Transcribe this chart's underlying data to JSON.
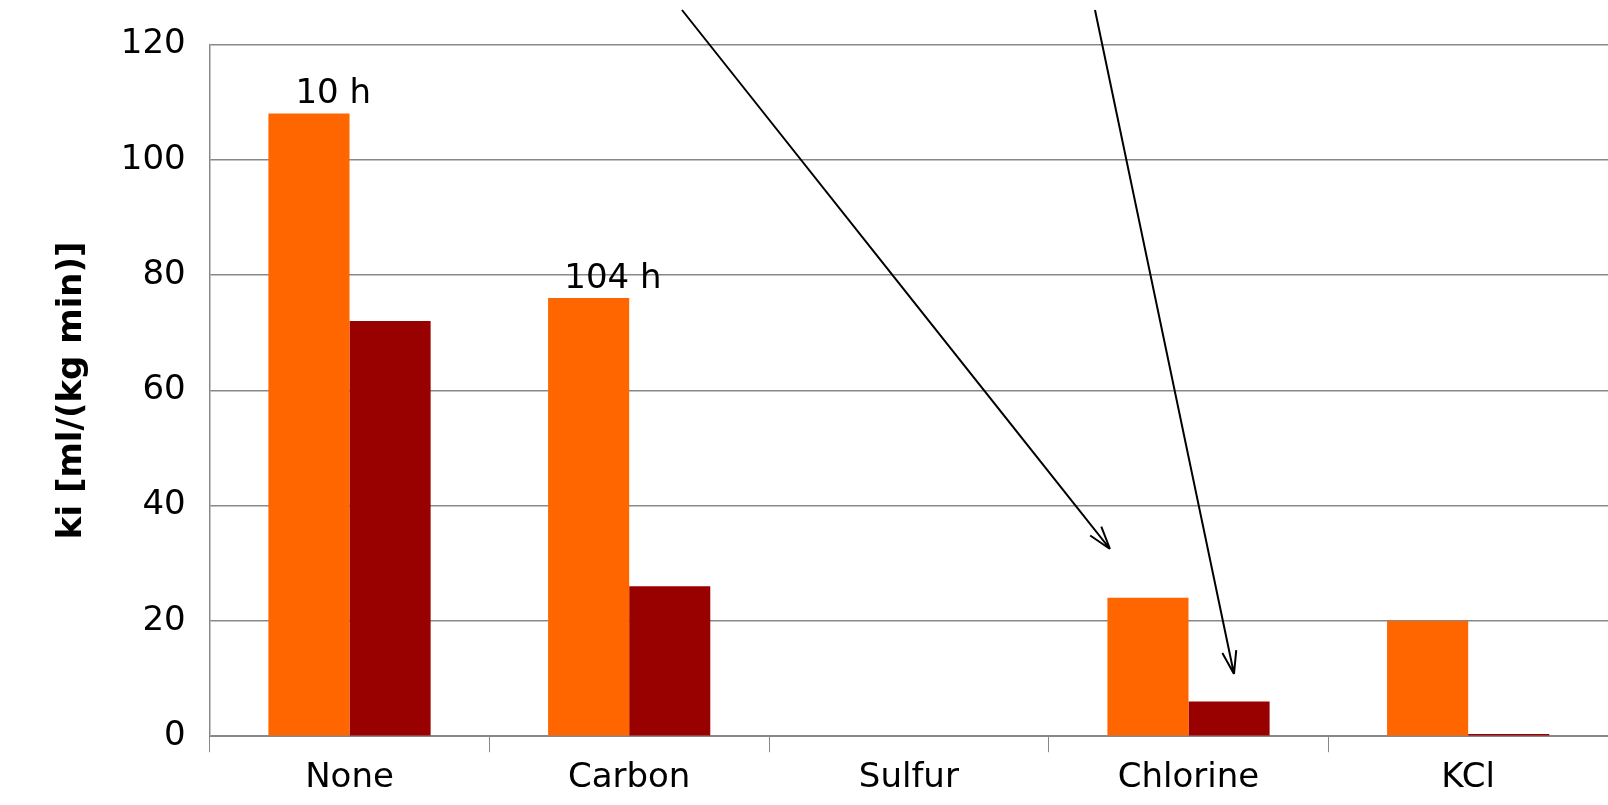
{
  "chart_data": {
    "type": "bar",
    "ylabel": "ki [ml/(kg min)]",
    "categories": [
      "None",
      "Carbon",
      "Sulfur",
      "Chlorine",
      "KCl"
    ],
    "series": [
      {
        "color": "#ff6600",
        "values": [
          108,
          76,
          null,
          24,
          20
        ]
      },
      {
        "color": "#990000",
        "values": [
          72,
          26,
          null,
          6,
          0.4
        ]
      }
    ],
    "ylim": [
      0,
      120
    ],
    "yticks": [
      0,
      20,
      40,
      60,
      80,
      100,
      120
    ],
    "grid": "y",
    "legend": false,
    "annotations": [
      {
        "text": "10 h",
        "x": "None",
        "y": 108
      },
      {
        "text": "104 h",
        "x": "Carbon",
        "y": 76
      }
    ]
  }
}
